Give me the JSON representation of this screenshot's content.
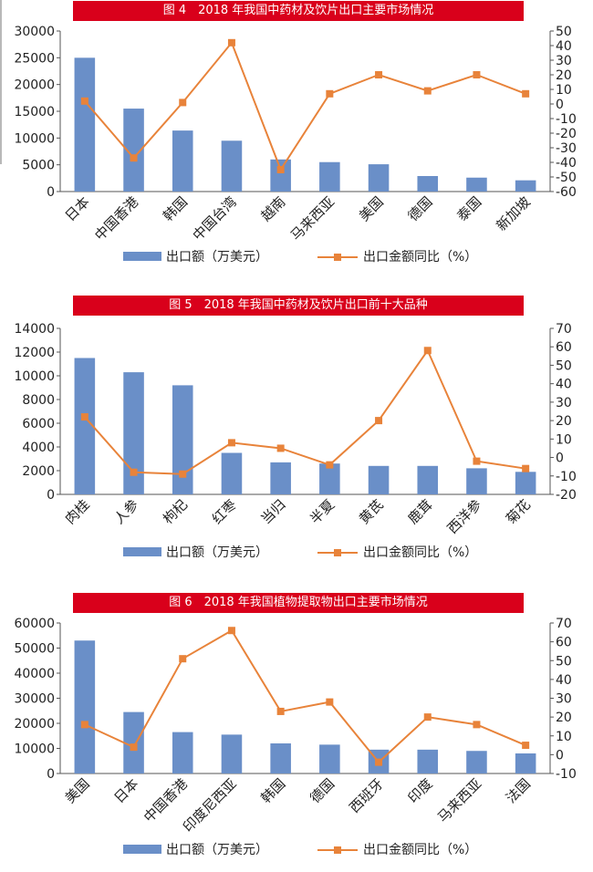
{
  "colors": {
    "title_bg": "#d9001b",
    "title_text": "#ffffff",
    "bar": "#6a8fc8",
    "line": "#e8833a",
    "axis_text": "#222222"
  },
  "chart_data": [
    {
      "type": "bar",
      "title": "图 4　2018 年我国中药材及饮片出口主要市场情况",
      "categories": [
        "日本",
        "中国香港",
        "韩国",
        "中国台湾",
        "越南",
        "马来西亚",
        "美国",
        "德国",
        "泰国",
        "新加坡"
      ],
      "series": [
        {
          "name": "出口额（万美元）",
          "type": "bar",
          "axis": "left",
          "values": [
            25000,
            15500,
            11400,
            9500,
            6000,
            5500,
            5100,
            2900,
            2600,
            2100
          ]
        },
        {
          "name": "出口金额同比（%）",
          "type": "line",
          "axis": "right",
          "values": [
            2,
            -37,
            1,
            42,
            -45,
            7,
            20,
            9,
            20,
            7
          ]
        }
      ],
      "ylim_left": [
        0,
        30000
      ],
      "yticks_left": [
        0,
        5000,
        10000,
        15000,
        20000,
        25000,
        30000
      ],
      "ylim_right": [
        -60,
        50
      ],
      "yticks_right": [
        -60,
        -50,
        -40,
        -30,
        -20,
        -10,
        0,
        10,
        20,
        30,
        40,
        50
      ],
      "legend": "bottom"
    },
    {
      "type": "bar",
      "title": "图 5　2018 年我国中药材及饮片出口前十大品种",
      "categories": [
        "肉桂",
        "人参",
        "枸杞",
        "红枣",
        "当归",
        "半夏",
        "黄芪",
        "鹿茸",
        "西洋参",
        "菊花"
      ],
      "series": [
        {
          "name": "出口额（万美元）",
          "type": "bar",
          "axis": "left",
          "values": [
            11500,
            10300,
            9200,
            3500,
            2700,
            2600,
            2400,
            2400,
            2200,
            1900
          ]
        },
        {
          "name": "出口金额同比（%）",
          "type": "line",
          "axis": "right",
          "values": [
            22,
            -8,
            -9,
            8,
            5,
            -4,
            20,
            58,
            -2,
            -6
          ]
        }
      ],
      "ylim_left": [
        0,
        14000
      ],
      "yticks_left": [
        0,
        2000,
        4000,
        6000,
        8000,
        10000,
        12000,
        14000
      ],
      "ylim_right": [
        -20,
        70
      ],
      "yticks_right": [
        -20,
        -10,
        0,
        10,
        20,
        30,
        40,
        50,
        60,
        70
      ],
      "legend": "bottom"
    },
    {
      "type": "bar",
      "title": "图 6　2018 年我国植物提取物出口主要市场情况",
      "categories": [
        "美国",
        "日本",
        "中国香港",
        "印度尼西亚",
        "韩国",
        "德国",
        "西班牙",
        "印度",
        "马来西亚",
        "法国"
      ],
      "series": [
        {
          "name": "出口额（万美元）",
          "type": "bar",
          "axis": "left",
          "values": [
            53000,
            24500,
            16500,
            15500,
            12000,
            11500,
            9500,
            9500,
            9000,
            8000
          ]
        },
        {
          "name": "出口金额同比（%）",
          "type": "line",
          "axis": "right",
          "values": [
            16,
            4,
            51,
            66,
            23,
            28,
            -4,
            20,
            16,
            5
          ]
        }
      ],
      "ylim_left": [
        0,
        60000
      ],
      "yticks_left": [
        0,
        10000,
        20000,
        30000,
        40000,
        50000,
        60000
      ],
      "ylim_right": [
        -10,
        70
      ],
      "yticks_right": [
        -10,
        0,
        10,
        20,
        30,
        40,
        50,
        60,
        70
      ],
      "legend": "bottom"
    }
  ]
}
